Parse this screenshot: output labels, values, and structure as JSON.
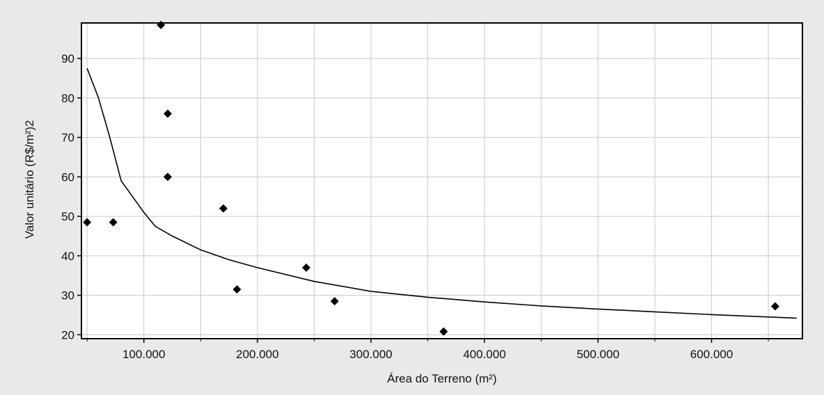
{
  "chart_data": {
    "type": "scatter",
    "title": "",
    "xlabel": "Área do Terreno (m²)",
    "ylabel": "Valor unitário (R$/m²)2",
    "xlim": [
      45000,
      680000
    ],
    "ylim": [
      19,
      99
    ],
    "grid": true,
    "x_ticks": [
      {
        "value": 100000,
        "label": "100.000"
      },
      {
        "value": 200000,
        "label": "200.000"
      },
      {
        "value": 300000,
        "label": "300.000"
      },
      {
        "value": 400000,
        "label": "400.000"
      },
      {
        "value": 500000,
        "label": "500.000"
      },
      {
        "value": 600000,
        "label": "600.000"
      }
    ],
    "x_minor_grid": [
      50000,
      150000,
      250000,
      350000,
      450000,
      550000,
      650000
    ],
    "y_ticks": [
      {
        "value": 20,
        "label": "20"
      },
      {
        "value": 30,
        "label": "30"
      },
      {
        "value": 40,
        "label": "40"
      },
      {
        "value": 50,
        "label": "50"
      },
      {
        "value": 60,
        "label": "60"
      },
      {
        "value": 70,
        "label": "70"
      },
      {
        "value": 80,
        "label": "80"
      },
      {
        "value": 90,
        "label": "90"
      }
    ],
    "series": [
      {
        "type": "scatter",
        "marker": "diamond",
        "color": "#000000",
        "points": [
          {
            "x": 50000,
            "y": 48.5
          },
          {
            "x": 73000,
            "y": 48.5
          },
          {
            "x": 115000,
            "y": 98.5
          },
          {
            "x": 121000,
            "y": 76
          },
          {
            "x": 121000,
            "y": 60
          },
          {
            "x": 170000,
            "y": 52
          },
          {
            "x": 182000,
            "y": 31.5
          },
          {
            "x": 243000,
            "y": 37
          },
          {
            "x": 268000,
            "y": 28.5
          },
          {
            "x": 364000,
            "y": 20.8
          },
          {
            "x": 656000,
            "y": 27.2
          }
        ]
      },
      {
        "type": "line",
        "color": "#000000",
        "points": [
          {
            "x": 50000,
            "y": 87.5
          },
          {
            "x": 60000,
            "y": 80
          },
          {
            "x": 70000,
            "y": 70
          },
          {
            "x": 80000,
            "y": 59
          },
          {
            "x": 90000,
            "y": 55
          },
          {
            "x": 100000,
            "y": 51
          },
          {
            "x": 110000,
            "y": 47.5
          },
          {
            "x": 125000,
            "y": 45
          },
          {
            "x": 150000,
            "y": 41.5
          },
          {
            "x": 175000,
            "y": 39
          },
          {
            "x": 200000,
            "y": 37
          },
          {
            "x": 250000,
            "y": 33.5
          },
          {
            "x": 300000,
            "y": 31
          },
          {
            "x": 350000,
            "y": 29.5
          },
          {
            "x": 400000,
            "y": 28.3
          },
          {
            "x": 450000,
            "y": 27.3
          },
          {
            "x": 500000,
            "y": 26.5
          },
          {
            "x": 550000,
            "y": 25.8
          },
          {
            "x": 600000,
            "y": 25.1
          },
          {
            "x": 650000,
            "y": 24.5
          },
          {
            "x": 675000,
            "y": 24.2
          }
        ]
      }
    ]
  }
}
